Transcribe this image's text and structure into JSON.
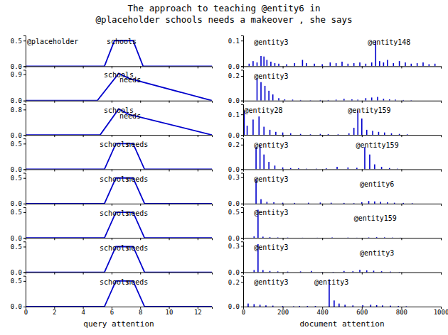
{
  "chart_data": [
    {
      "type": "line",
      "title": "The approach to teaching @entity6 in\n@placeholder schools needs a makeover , she says",
      "color": "#0000cc",
      "x": [
        0,
        5.5,
        6.2,
        7.5,
        8.2,
        13
      ],
      "values": [
        0,
        0,
        0.5,
        0.5,
        0,
        0
      ],
      "xlim": [
        0,
        13
      ],
      "xticks": [
        0,
        2,
        4,
        6,
        8,
        10,
        12
      ],
      "ylim": [
        0,
        0.6
      ],
      "yticks": [
        {
          "value": 0.0,
          "label": "0.0"
        },
        0.5
      ],
      "tick_labels": "y",
      "annotations": [
        {
          "text": "@placeholder",
          "x": 0.1,
          "y": 0.53,
          "align": "left"
        },
        {
          "text": "schools",
          "x": 6.7,
          "y": 0.53,
          "align": "center"
        }
      ]
    },
    {
      "type": "line",
      "color": "#0000cc",
      "x": [
        0,
        5.0,
        6.5,
        7.2,
        13
      ],
      "values": [
        0,
        0,
        0.93,
        0.76,
        0
      ],
      "xlim": [
        0,
        13
      ],
      "xticks": [
        0,
        2,
        4,
        6,
        8,
        10,
        12
      ],
      "ylim": [
        0,
        1.05
      ],
      "yticks": [
        {
          "value": 0.0,
          "label": "0.0"
        },
        0.9
      ],
      "tick_labels": "y",
      "annotations": [
        {
          "text": "schools",
          "x": 6.5,
          "y": 0.97,
          "align": "center"
        },
        {
          "text": "needs",
          "x": 7.3,
          "y": 0.8,
          "align": "center"
        }
      ]
    },
    {
      "type": "line",
      "color": "#0000cc",
      "x": [
        0,
        5.2,
        6.5,
        7.2,
        13
      ],
      "values": [
        0,
        0,
        0.82,
        0.65,
        0
      ],
      "xlim": [
        0,
        13
      ],
      "xticks": [
        0,
        2,
        4,
        6,
        8,
        10,
        12
      ],
      "ylim": [
        0,
        0.97
      ],
      "yticks": [
        {
          "value": 0.0,
          "label": "0.0"
        },
        0.8
      ],
      "tick_labels": "y",
      "annotations": [
        {
          "text": "schools",
          "x": 6.5,
          "y": 0.85,
          "align": "center"
        },
        {
          "text": "needs",
          "x": 7.3,
          "y": 0.68,
          "align": "center"
        }
      ]
    },
    {
      "type": "line",
      "color": "#0000cc",
      "x": [
        0,
        5.5,
        6.3,
        7.5,
        8.3,
        13
      ],
      "values": [
        0,
        0,
        0.5,
        0.5,
        0,
        0
      ],
      "xlim": [
        0,
        13
      ],
      "xticks": [
        0,
        2,
        4,
        6,
        8,
        10,
        12
      ],
      "ylim": [
        0,
        0.6
      ],
      "yticks": [
        {
          "value": 0.0,
          "label": "0.0"
        },
        0.5
      ],
      "tick_labels": "y",
      "annotations": [
        {
          "text": "schools",
          "x": 6.2,
          "y": 0.53,
          "align": "center"
        },
        {
          "text": "needs",
          "x": 7.8,
          "y": 0.53,
          "align": "center"
        }
      ]
    },
    {
      "type": "line",
      "color": "#0000cc",
      "x": [
        0,
        5.5,
        6.3,
        7.5,
        8.3,
        13
      ],
      "values": [
        0,
        0,
        0.5,
        0.5,
        0,
        0
      ],
      "xlim": [
        0,
        13
      ],
      "xticks": [
        0,
        2,
        4,
        6,
        8,
        10,
        12
      ],
      "ylim": [
        0,
        0.6
      ],
      "yticks": [
        {
          "value": 0.0,
          "label": "0.0"
        },
        0.5
      ],
      "tick_labels": "y",
      "annotations": [
        {
          "text": "schools",
          "x": 6.2,
          "y": 0.53,
          "align": "center"
        },
        {
          "text": "needs",
          "x": 7.8,
          "y": 0.53,
          "align": "center"
        }
      ]
    },
    {
      "type": "line",
      "color": "#0000cc",
      "x": [
        0,
        5.5,
        6.3,
        7.5,
        8.3,
        13
      ],
      "values": [
        0,
        0,
        0.5,
        0.5,
        0,
        0
      ],
      "xlim": [
        0,
        13
      ],
      "xticks": [
        0,
        2,
        4,
        6,
        8,
        10,
        12
      ],
      "ylim": [
        0,
        0.6
      ],
      "yticks": [
        {
          "value": 0.0,
          "label": "0.0"
        },
        0.5
      ],
      "tick_labels": "y",
      "annotations": [
        {
          "text": "schools",
          "x": 6.2,
          "y": 0.53,
          "align": "center"
        },
        {
          "text": "needs",
          "x": 7.8,
          "y": 0.53,
          "align": "center"
        }
      ]
    },
    {
      "type": "line",
      "color": "#0000cc",
      "x": [
        0,
        5.5,
        6.3,
        7.5,
        8.3,
        13
      ],
      "values": [
        0,
        0,
        0.5,
        0.5,
        0,
        0
      ],
      "xlim": [
        0,
        13
      ],
      "xticks": [
        0,
        2,
        4,
        6,
        8,
        10,
        12
      ],
      "ylim": [
        0,
        0.6
      ],
      "yticks": [
        {
          "value": 0.0,
          "label": "0.0"
        },
        0.5
      ],
      "tick_labels": "y",
      "annotations": [
        {
          "text": "schools",
          "x": 6.2,
          "y": 0.53,
          "align": "center"
        },
        {
          "text": "needs",
          "x": 7.8,
          "y": 0.53,
          "align": "center"
        }
      ]
    },
    {
      "type": "line",
      "color": "#0000cc",
      "x_label": "query attention",
      "x": [
        0,
        5.5,
        6.3,
        7.5,
        8.3,
        13
      ],
      "values": [
        0,
        0,
        0.5,
        0.5,
        0,
        0
      ],
      "xlim": [
        0,
        13
      ],
      "xticks": [
        0,
        2,
        4,
        6,
        8,
        10,
        12
      ],
      "ylim": [
        0,
        0.6
      ],
      "yticks": [
        {
          "value": 0.0,
          "label": "0.0"
        },
        0.5
      ],
      "annotations": [
        {
          "text": "schools",
          "x": 6.2,
          "y": 0.53,
          "align": "center"
        },
        {
          "text": "needs",
          "x": 7.8,
          "y": 0.53,
          "align": "center"
        }
      ]
    },
    {
      "type": "bar",
      "color": "#0000cc",
      "x": [
        30,
        50,
        70,
        90,
        105,
        120,
        140,
        160,
        180,
        220,
        260,
        300,
        320,
        360,
        400,
        440,
        470,
        500,
        530,
        560,
        590,
        620,
        650,
        670,
        690,
        710,
        730,
        760,
        790,
        820,
        850,
        880,
        910,
        940,
        970
      ],
      "values": [
        0.01,
        0.02,
        0.015,
        0.04,
        0.038,
        0.025,
        0.018,
        0.012,
        0.01,
        0.008,
        0.012,
        0.025,
        0.012,
        0.01,
        0.008,
        0.015,
        0.012,
        0.018,
        0.01,
        0.012,
        0.015,
        0.01,
        0.015,
        0.1,
        0.02,
        0.015,
        0.025,
        0.012,
        0.02,
        0.015,
        0.01,
        0.012,
        0.015,
        0.008,
        0.01
      ],
      "xlim": [
        0,
        1000
      ],
      "xticks": [
        0,
        200,
        400,
        600,
        800,
        1000
      ],
      "ylim": [
        0,
        0.12
      ],
      "yticks": [
        {
          "value": 0.0,
          "label": "0.0"
        },
        0.1
      ],
      "tick_labels": "y",
      "annotations": [
        {
          "text": "@entity3",
          "x": 55,
          "y": 0.105,
          "align": "left"
        },
        {
          "text": "@entity148",
          "x": 630,
          "y": 0.105,
          "align": "left"
        }
      ]
    },
    {
      "type": "bar",
      "color": "#0000cc",
      "x": [
        70,
        90,
        110,
        130,
        150,
        180,
        210,
        250,
        290,
        340,
        390,
        430,
        470,
        510,
        550,
        580,
        620,
        650,
        680,
        710,
        740,
        770,
        810,
        850
      ],
      "values": [
        0.18,
        0.15,
        0.12,
        0.08,
        0.05,
        0.02,
        0.01,
        0.008,
        0.005,
        0.003,
        0.005,
        0.005,
        0.008,
        0.015,
        0.01,
        0.008,
        0.02,
        0.025,
        0.03,
        0.015,
        0.01,
        0.008,
        0.005,
        0.003
      ],
      "xlim": [
        0,
        1000
      ],
      "xticks": [
        0,
        200,
        400,
        600,
        800,
        1000
      ],
      "ylim": [
        0,
        0.25
      ],
      "yticks": [
        {
          "value": 0.0,
          "label": "0.0"
        },
        0.2
      ],
      "tick_labels": "y",
      "annotations": [
        {
          "text": "@entity3",
          "x": 55,
          "y": 0.22,
          "align": "left"
        }
      ]
    },
    {
      "type": "bar",
      "color": "#0000cc",
      "x": [
        5,
        20,
        50,
        80,
        105,
        135,
        165,
        200,
        240,
        290,
        340,
        390,
        430,
        480,
        535,
        560,
        580,
        600,
        625,
        655,
        685,
        715,
        750,
        790,
        830
      ],
      "values": [
        0.12,
        0.045,
        0.075,
        0.09,
        0.04,
        0.025,
        0.015,
        0.012,
        0.008,
        0.005,
        0.003,
        0.005,
        0.004,
        0.003,
        0.008,
        0.035,
        0.12,
        0.08,
        0.025,
        0.02,
        0.015,
        0.012,
        0.008,
        0.005,
        0.003
      ],
      "xlim": [
        0,
        1000
      ],
      "xticks": [
        0,
        200,
        400,
        600,
        800,
        1000
      ],
      "ylim": [
        0,
        0.15
      ],
      "yticks": [
        {
          "value": 0.0,
          "label": "0.0"
        },
        0.1
      ],
      "tick_labels": "y",
      "annotations": [
        {
          "text": "@entity28",
          "x": 5,
          "y": 0.132,
          "align": "left"
        },
        {
          "text": "@entity159",
          "x": 530,
          "y": 0.132,
          "align": "left"
        }
      ]
    },
    {
      "type": "bar",
      "color": "#0000cc",
      "x": [
        65,
        85,
        105,
        130,
        160,
        200,
        240,
        280,
        320,
        370,
        420,
        475,
        530,
        575,
        615,
        640,
        665,
        700,
        740,
        780
      ],
      "values": [
        0.18,
        0.2,
        0.12,
        0.06,
        0.03,
        0.015,
        0.01,
        0.008,
        0.005,
        0.005,
        0.008,
        0.02,
        0.015,
        0.012,
        0.18,
        0.12,
        0.04,
        0.02,
        0.01,
        0.005
      ],
      "xlim": [
        0,
        1000
      ],
      "xticks": [
        0,
        200,
        400,
        600,
        800,
        1000
      ],
      "ylim": [
        0,
        0.25
      ],
      "yticks": [
        {
          "value": 0.0,
          "label": "0.0"
        },
        0.2
      ],
      "tick_labels": "y",
      "annotations": [
        {
          "text": "@entity3",
          "x": 55,
          "y": 0.22,
          "align": "left"
        },
        {
          "text": "@entity159",
          "x": 570,
          "y": 0.22,
          "align": "left"
        }
      ]
    },
    {
      "type": "bar",
      "color": "#0000cc",
      "x": [
        65,
        90,
        120,
        155,
        200,
        260,
        330,
        390,
        445,
        510,
        560,
        600,
        635,
        665,
        695,
        730,
        765,
        810,
        855
      ],
      "values": [
        0.28,
        0.05,
        0.02,
        0.015,
        0.01,
        0.008,
        0.01,
        0.012,
        0.01,
        0.008,
        0.005,
        0.015,
        0.03,
        0.025,
        0.02,
        0.015,
        0.01,
        0.008,
        0.005
      ],
      "xlim": [
        0,
        1000
      ],
      "xticks": [
        0,
        200,
        400,
        600,
        800,
        1000
      ],
      "ylim": [
        0,
        0.35
      ],
      "yticks": [
        {
          "value": 0.0,
          "label": "0.0"
        },
        0.3
      ],
      "tick_labels": "y",
      "annotations": [
        {
          "text": "@entity3",
          "x": 55,
          "y": 0.31,
          "align": "left"
        },
        {
          "text": "@entity6",
          "x": 590,
          "y": 0.25,
          "align": "left"
        }
      ]
    },
    {
      "type": "bar",
      "color": "#0000cc",
      "x": [
        55,
        75,
        100,
        135,
        175,
        225,
        300,
        375,
        450,
        530,
        575,
        635,
        675,
        715,
        755,
        795
      ],
      "values": [
        0.03,
        0.55,
        0.025,
        0.015,
        0.01,
        0.008,
        0.005,
        0.005,
        0.01,
        0.008,
        0.005,
        0.01,
        0.015,
        0.012,
        0.008,
        0.005
      ],
      "xlim": [
        0,
        1000
      ],
      "xticks": [
        0,
        200,
        400,
        600,
        800,
        1000
      ],
      "ylim": [
        0,
        0.6
      ],
      "yticks": [
        {
          "value": 0.0,
          "label": "0.0"
        },
        0.5
      ],
      "tick_labels": "y",
      "annotations": [
        {
          "text": "@entity3",
          "x": 55,
          "y": 0.54,
          "align": "left"
        },
        {
          "text": "@entity159",
          "x": 560,
          "y": 0.43,
          "align": "left"
        }
      ]
    },
    {
      "type": "bar",
      "color": "#0000cc",
      "x": [
        55,
        75,
        100,
        135,
        175,
        225,
        290,
        345,
        400,
        455,
        510,
        555,
        590,
        625,
        660,
        700,
        745,
        790
      ],
      "values": [
        0.025,
        0.32,
        0.025,
        0.015,
        0.01,
        0.008,
        0.01,
        0.015,
        0.005,
        0.005,
        0.015,
        0.012,
        0.028,
        0.022,
        0.018,
        0.012,
        0.008,
        0.005
      ],
      "xlim": [
        0,
        1000
      ],
      "xticks": [
        0,
        200,
        400,
        600,
        800,
        1000
      ],
      "ylim": [
        0,
        0.35
      ],
      "yticks": [
        {
          "value": 0.0,
          "label": "0.0"
        },
        0.3
      ],
      "tick_labels": "y",
      "annotations": [
        {
          "text": "@entity3",
          "x": 55,
          "y": 0.31,
          "align": "left"
        },
        {
          "text": "@entity3",
          "x": 590,
          "y": 0.25,
          "align": "left"
        }
      ]
    },
    {
      "type": "bar",
      "color": "#0000cc",
      "x_label": "document attention",
      "x": [
        25,
        55,
        85,
        115,
        150,
        200,
        255,
        285,
        325,
        365,
        435,
        460,
        485,
        515,
        555,
        605,
        645,
        675,
        705,
        745,
        785,
        825
      ],
      "values": [
        0.025,
        0.02,
        0.015,
        0.01,
        0.008,
        0.005,
        0.003,
        0.005,
        0.005,
        0.005,
        0.22,
        0.05,
        0.025,
        0.015,
        0.01,
        0.012,
        0.015,
        0.012,
        0.01,
        0.008,
        0.005,
        0.003
      ],
      "xlim": [
        0,
        1000
      ],
      "xticks": [
        0,
        200,
        400,
        600,
        800,
        1000
      ],
      "ylim": [
        0,
        0.25
      ],
      "yticks": [
        {
          "value": 0.0,
          "label": "0.0"
        },
        0.2
      ],
      "annotations": [
        {
          "text": "@entity3",
          "x": 55,
          "y": 0.22,
          "align": "left"
        },
        {
          "text": "@entity3",
          "x": 360,
          "y": 0.22,
          "align": "left"
        }
      ]
    }
  ]
}
